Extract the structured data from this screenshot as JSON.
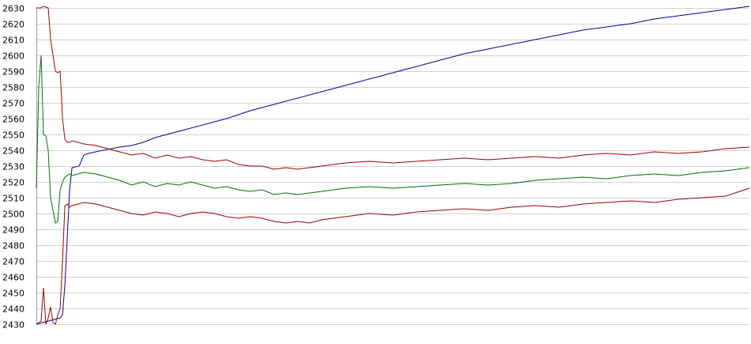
{
  "chart_data": {
    "type": "line",
    "title": "",
    "xlabel": "",
    "ylabel": "",
    "ylim": [
      2430,
      2630
    ],
    "y_ticks": [
      2630,
      2620,
      2610,
      2600,
      2590,
      2580,
      2570,
      2560,
      2550,
      2540,
      2530,
      2520,
      2510,
      2500,
      2490,
      2480,
      2470,
      2460,
      2450,
      2440,
      2430
    ],
    "grid": true,
    "legend": "none",
    "xlim": [
      0,
      300
    ],
    "series": [
      {
        "color": "#0000a0",
        "x": [
          0,
          5,
          10,
          11,
          12,
          13,
          14,
          15,
          18,
          20,
          22,
          28,
          35,
          40,
          45,
          50,
          60,
          70,
          80,
          90,
          100,
          110,
          120,
          130,
          140,
          150,
          160,
          170,
          180,
          190,
          200,
          210,
          220,
          230,
          240,
          250,
          260,
          270,
          280,
          290,
          300
        ],
        "values": [
          2430,
          2432,
          2434,
          2436,
          2455,
          2485,
          2515,
          2529,
          2530,
          2537,
          2538,
          2540,
          2542,
          2543,
          2545,
          2548,
          2552,
          2556,
          2560,
          2565,
          2569,
          2573,
          2577,
          2581,
          2585,
          2589,
          2593,
          2597,
          2601,
          2604,
          2607,
          2610,
          2613,
          2616,
          2618,
          2620,
          2623,
          2625,
          2627,
          2629,
          2631
        ]
      },
      {
        "color": "#007000",
        "x": [
          0,
          1,
          2,
          3,
          4,
          5,
          6,
          8,
          9,
          10,
          11,
          12,
          13,
          14,
          15,
          20,
          25,
          30,
          35,
          40,
          45,
          50,
          55,
          60,
          65,
          70,
          75,
          80,
          85,
          90,
          95,
          100,
          105,
          110,
          120,
          130,
          140,
          150,
          160,
          170,
          180,
          190,
          200,
          210,
          220,
          230,
          240,
          250,
          260,
          270,
          280,
          290,
          300
        ],
        "values": [
          2516,
          2580,
          2600,
          2550,
          2549,
          2540,
          2510,
          2494,
          2495,
          2515,
          2520,
          2523,
          2524,
          2525,
          2524,
          2526,
          2525,
          2523,
          2521,
          2518,
          2520,
          2517,
          2519,
          2518,
          2520,
          2518,
          2516,
          2517,
          2515,
          2514,
          2515,
          2512,
          2513,
          2512,
          2514,
          2516,
          2517,
          2516,
          2517,
          2518,
          2519,
          2518,
          2519,
          2521,
          2522,
          2523,
          2522,
          2524,
          2525,
          2524,
          2526,
          2527,
          2529
        ]
      },
      {
        "color": "#a00000",
        "x": [
          0,
          1,
          2,
          3,
          5,
          6,
          8,
          9,
          10,
          11,
          12,
          13,
          14,
          15,
          20,
          25,
          30,
          35,
          40,
          45,
          50,
          55,
          60,
          65,
          70,
          75,
          80,
          85,
          90,
          95,
          100,
          105,
          110,
          120,
          130,
          140,
          150,
          160,
          170,
          180,
          190,
          200,
          210,
          220,
          230,
          240,
          250,
          260,
          270,
          280,
          290,
          300
        ],
        "values": [
          2630,
          2630,
          2630,
          2631,
          2630,
          2610,
          2590,
          2589,
          2590,
          2560,
          2547,
          2545,
          2545,
          2546,
          2544,
          2543,
          2541,
          2539,
          2537,
          2538,
          2535,
          2537,
          2535,
          2536,
          2534,
          2533,
          2534,
          2531,
          2530,
          2530,
          2528,
          2529,
          2528,
          2530,
          2532,
          2533,
          2532,
          2533,
          2534,
          2535,
          2534,
          2535,
          2536,
          2535,
          2537,
          2538,
          2537,
          2539,
          2538,
          2539,
          2541,
          2542
        ]
      },
      {
        "color": "#a00000",
        "x": [
          0,
          1,
          2,
          3,
          4,
          5,
          6,
          7,
          8,
          9,
          10,
          11,
          12,
          13,
          14,
          15,
          20,
          25,
          30,
          35,
          40,
          45,
          50,
          55,
          60,
          65,
          70,
          75,
          80,
          85,
          90,
          95,
          100,
          105,
          110,
          115,
          120,
          130,
          140,
          150,
          160,
          170,
          180,
          190,
          200,
          210,
          220,
          230,
          240,
          250,
          260,
          270,
          280,
          290,
          300
        ],
        "values": [
          2430,
          2431,
          2432,
          2453,
          2430,
          2434,
          2441,
          2431,
          2430,
          2436,
          2440,
          2470,
          2505,
          2506,
          2504,
          2505,
          2507,
          2506,
          2504,
          2502,
          2500,
          2499,
          2501,
          2500,
          2498,
          2500,
          2501,
          2500,
          2498,
          2497,
          2498,
          2497,
          2495,
          2494,
          2495,
          2494,
          2496,
          2498,
          2500,
          2499,
          2501,
          2502,
          2503,
          2502,
          2504,
          2505,
          2504,
          2506,
          2507,
          2508,
          2507,
          2509,
          2510,
          2511,
          2516
        ]
      }
    ]
  }
}
